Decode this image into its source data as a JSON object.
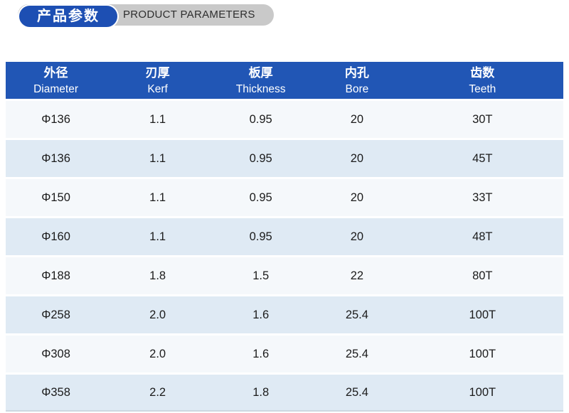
{
  "badge": {
    "zh": "产品参数",
    "en": "PRODUCT PARAMETERS"
  },
  "table": {
    "columns": [
      {
        "zh": "外径",
        "en": "Diameter"
      },
      {
        "zh": "刃厚",
        "en": "Kerf"
      },
      {
        "zh": "板厚",
        "en": "Thickness"
      },
      {
        "zh": "内孔",
        "en": "Bore"
      },
      {
        "zh": "齿数",
        "en": "Teeth"
      }
    ],
    "rows": [
      [
        "Φ136",
        "1.1",
        "0.95",
        "20",
        "30T"
      ],
      [
        "Φ136",
        "1.1",
        "0.95",
        "20",
        "45T"
      ],
      [
        "Φ150",
        "1.1",
        "0.95",
        "20",
        "33T"
      ],
      [
        "Φ160",
        "1.1",
        "0.95",
        "20",
        "48T"
      ],
      [
        "Φ188",
        "1.8",
        "1.5",
        "22",
        "80T"
      ],
      [
        "Φ258",
        "2.0",
        "1.6",
        "25.4",
        "100T"
      ],
      [
        "Φ308",
        "2.0",
        "1.6",
        "25.4",
        "100T"
      ],
      [
        "Φ358",
        "2.2",
        "1.8",
        "25.4",
        "100T"
      ]
    ]
  },
  "colors": {
    "header_bg": "#2156b5",
    "badge_blue": "#1d4fb3",
    "badge_gray": "#c9c9c9",
    "row_odd": "#f5f8fb",
    "row_even": "#dfeaf4",
    "text": "#1b1b1b"
  }
}
